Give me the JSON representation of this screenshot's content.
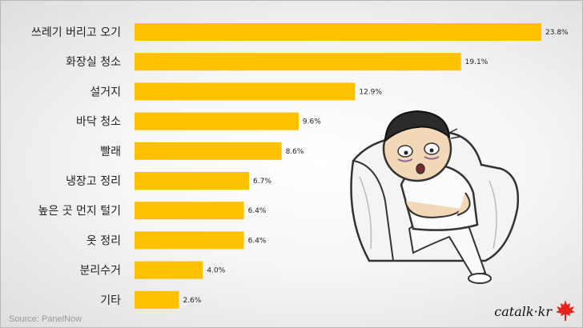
{
  "chart_data": {
    "type": "bar",
    "orientation": "horizontal",
    "categories": [
      "쓰레기 버리고 오기",
      "화장실 청소",
      "설거지",
      "바닥 청소",
      "빨래",
      "냉장고 정리",
      "높은 곳 먼지 털기",
      "옷 정리",
      "분리수거",
      "기타"
    ],
    "values": [
      23.8,
      19.1,
      12.9,
      9.6,
      8.6,
      6.7,
      6.4,
      6.4,
      4.0,
      2.6
    ],
    "value_labels": [
      "23.8%",
      "19.1%",
      "12.9%",
      "9.6%",
      "8.6%",
      "6.7%",
      "6.4%",
      "6.4%",
      "4.0%",
      "2.6%"
    ],
    "bar_color": "#FFC000",
    "xlim": [
      0,
      23.8
    ],
    "grid": false,
    "legend": "none"
  },
  "source": "Source: PanelNow",
  "brand": "catalk·kr",
  "illustration_icon": "tired-person-on-sofa-illustration",
  "brand_icon": "maple-leaf-icon",
  "brand_icon_color": "#E8231A"
}
